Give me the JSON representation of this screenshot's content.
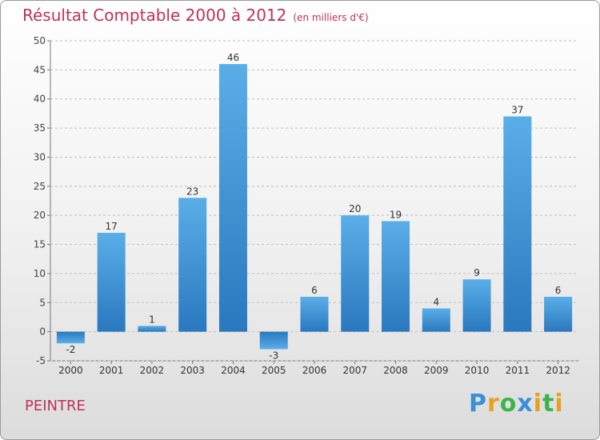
{
  "chart_data": {
    "type": "bar",
    "title": "Résultat Comptable 2000 à 2012",
    "subtitle": "(en milliers d'€)",
    "categories": [
      "2000",
      "2001",
      "2002",
      "2003",
      "2004",
      "2005",
      "2006",
      "2007",
      "2008",
      "2009",
      "2010",
      "2011",
      "2012"
    ],
    "values": [
      -2,
      17,
      1,
      23,
      46,
      -3,
      6,
      20,
      19,
      4,
      9,
      37,
      6
    ],
    "ylim": [
      -5,
      50
    ],
    "yticks": [
      -5,
      0,
      5,
      10,
      15,
      20,
      25,
      30,
      35,
      40,
      45,
      50
    ],
    "grid": true,
    "xlabel": "",
    "ylabel": ""
  },
  "commune": "PEINTRE",
  "brand": {
    "letters": [
      "P",
      "r",
      "o",
      "x",
      "i",
      "t",
      "i"
    ],
    "colors": [
      "#3a8fd6",
      "#e8a020",
      "#3bb54a",
      "#3a8fd6",
      "#e8a020",
      "#3bb54a",
      "#e8a020"
    ]
  }
}
